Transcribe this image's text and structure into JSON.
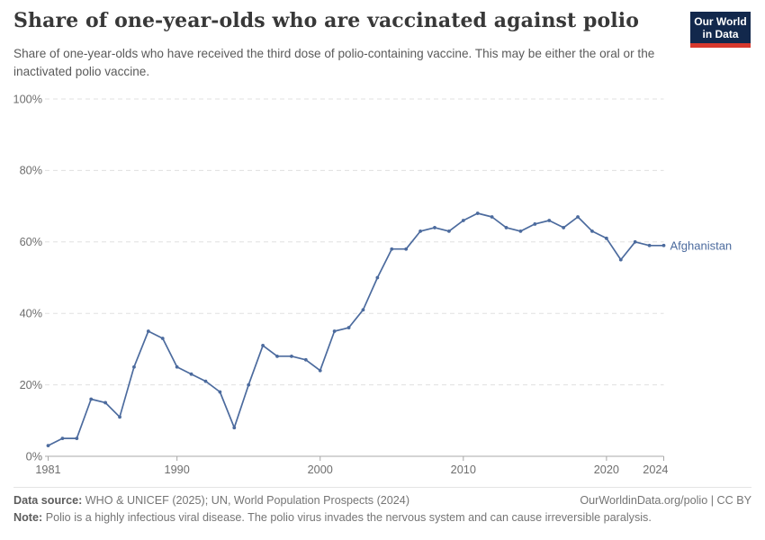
{
  "header": {
    "title": "Share of one-year-olds who are vaccinated against polio",
    "subtitle": "Share of one-year-olds who have received the third dose of polio-containing vaccine. This may be either the oral or the inactivated polio vaccine.",
    "logo": {
      "line1": "Our World",
      "line2": "in Data",
      "bg_color": "#12284C",
      "stripe_color": "#D7382D"
    }
  },
  "chart_data": {
    "type": "line",
    "title": "Share of one-year-olds who are vaccinated against polio",
    "xlabel": "",
    "ylabel": "",
    "xlim": [
      1981,
      2024
    ],
    "ylim": [
      0,
      100
    ],
    "grid": "horizontal-dashed",
    "legend_position": "end-of-line",
    "x_ticks": [
      1981,
      1990,
      2000,
      2010,
      2020,
      2024
    ],
    "y_ticks": [
      0,
      20,
      40,
      60,
      80,
      100
    ],
    "y_tick_suffix": "%",
    "line_color": "#4C6B9E",
    "grid_color": "#e0e0e0",
    "axis_color": "#a8a8a8",
    "tick_label_color": "#6e6e6e",
    "series": [
      {
        "name": "Afghanistan",
        "color": "#4C6B9E",
        "x": [
          1981,
          1982,
          1983,
          1984,
          1985,
          1986,
          1987,
          1988,
          1989,
          1990,
          1991,
          1992,
          1993,
          1994,
          1995,
          1996,
          1997,
          1998,
          1999,
          2000,
          2001,
          2002,
          2003,
          2004,
          2005,
          2006,
          2007,
          2008,
          2009,
          2010,
          2011,
          2012,
          2013,
          2014,
          2015,
          2016,
          2017,
          2018,
          2019,
          2020,
          2021,
          2022,
          2023,
          2024
        ],
        "values": [
          3,
          5,
          5,
          16,
          15,
          11,
          25,
          35,
          33,
          25,
          23,
          21,
          18,
          8,
          20,
          31,
          28,
          28,
          27,
          24,
          35,
          36,
          41,
          50,
          58,
          58,
          63,
          64,
          63,
          66,
          68,
          67,
          64,
          63,
          65,
          66,
          64,
          67,
          63,
          61,
          55,
          60,
          59,
          59
        ]
      }
    ]
  },
  "footer": {
    "source_label": "Data source:",
    "source_text": "WHO & UNICEF (2025); UN, World Population Prospects (2024)",
    "attribution": "OurWorldinData.org/polio | CC BY",
    "note_label": "Note:",
    "note_text": "Polio is a highly infectious viral disease. The polio virus invades the nervous system and can cause irreversible paralysis."
  }
}
